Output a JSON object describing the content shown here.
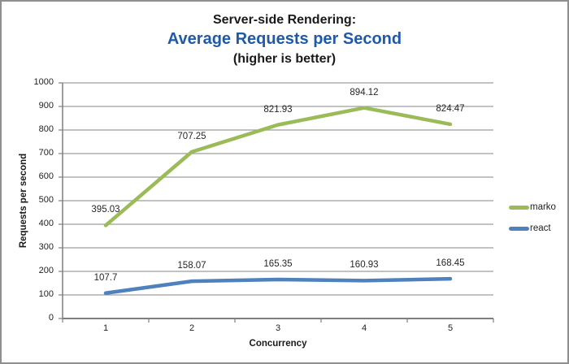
{
  "chart_data": {
    "type": "line",
    "title": "Server-side Rendering:",
    "subtitle": "Average Requests per Second",
    "note": "(higher is better)",
    "xlabel": "Concurrency",
    "ylabel": "Requests per second",
    "categories": [
      "1",
      "2",
      "3",
      "4",
      "5"
    ],
    "ylim": [
      0,
      1000
    ],
    "ytick_step": 100,
    "grid": "horizontal-gridlines",
    "legend_position": "right",
    "series": [
      {
        "name": "marko",
        "color": "#9bbb59",
        "values": [
          395.03,
          707.25,
          821.93,
          894.12,
          824.47
        ]
      },
      {
        "name": "react",
        "color": "#4f81bd",
        "values": [
          107.7,
          158.07,
          165.35,
          160.93,
          168.45
        ]
      }
    ]
  },
  "colors": {
    "subtitle_blue": "#1f5aa8",
    "gridline_gray": "#9d9d9d",
    "axis_gray": "#7f7f7f",
    "border_gray": "#8f8f8f",
    "text_black": "#1a1a1a"
  }
}
